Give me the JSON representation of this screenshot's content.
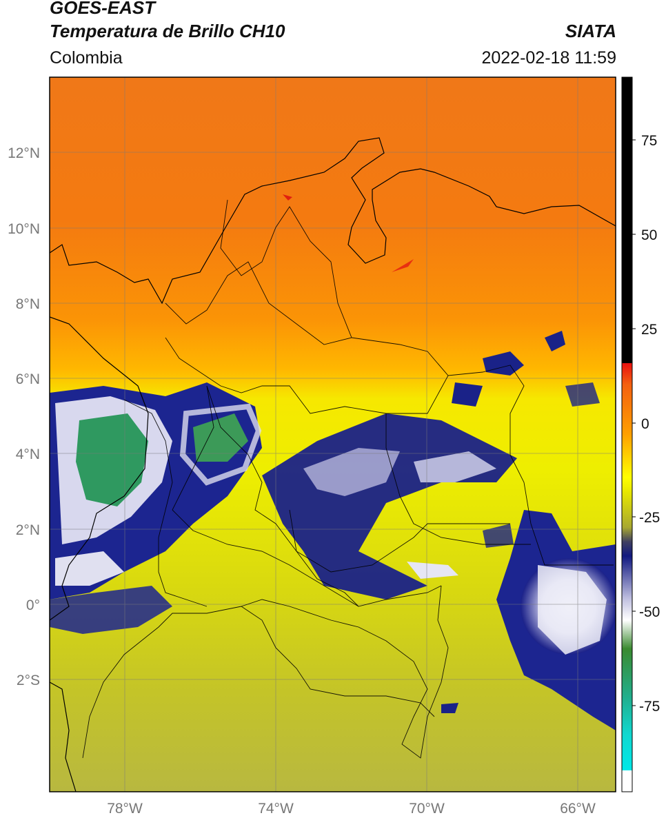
{
  "header": {
    "satellite": "GOES-EAST",
    "product": "Temperatura de Brillo CH10",
    "region": "Colombia",
    "source": "SIATA",
    "datetime": "2022-02-18 11:59"
  },
  "map": {
    "type": "satellite brightness temperature map",
    "lat_labels": [
      "12°N",
      "10°N",
      "8°N",
      "6°N",
      "4°N",
      "2°N",
      "0°",
      "2°S"
    ],
    "lon_labels": [
      "78°W",
      "74°W",
      "70°W",
      "66°W"
    ],
    "lat_range": [
      -5,
      14
    ],
    "lon_range": [
      -80,
      -65
    ]
  },
  "colorbar": {
    "ticks": [
      "75",
      "50",
      "25",
      "0",
      "-25",
      "-50",
      "-75"
    ],
    "range": [
      -100,
      90
    ]
  },
  "colors": {
    "warm_orange": "#ff8c00",
    "yellow": "#f2f200",
    "olive": "#b8b83a",
    "navy": "#101878",
    "cloud_white": "#f0f0f8",
    "green": "#3a9a60",
    "teal": "#20c0a0",
    "cyan": "#00e0e0",
    "black": "#000000",
    "red": "#ee1010"
  }
}
